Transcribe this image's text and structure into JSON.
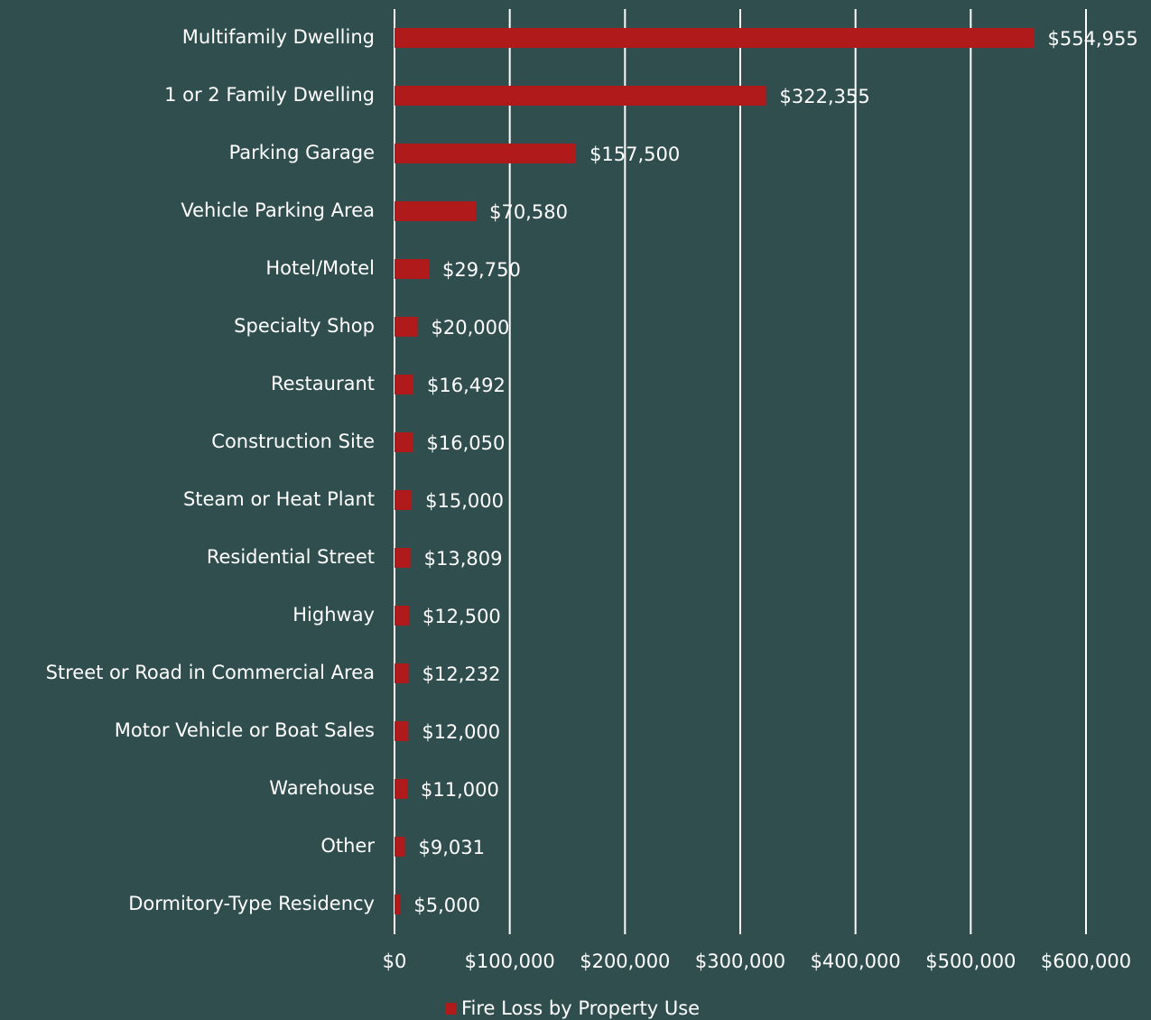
{
  "chart_data": {
    "type": "bar",
    "orientation": "horizontal",
    "categories": [
      "Multifamily Dwelling",
      "1 or 2 Family Dwelling",
      "Parking Garage",
      "Vehicle Parking Area",
      "Hotel/Motel",
      "Specialty Shop",
      "Restaurant",
      "Construction Site",
      "Steam or Heat Plant",
      "Residential Street",
      "Highway",
      "Street or Road in Commercial Area",
      "Motor Vehicle or Boat Sales",
      "Warehouse",
      "Other",
      "Dormitory-Type Residency"
    ],
    "series": [
      {
        "name": "Fire Loss by Property Use",
        "color": "#b01a1a",
        "values": [
          554955,
          322355,
          157500,
          70580,
          29750,
          20000,
          16492,
          16050,
          15000,
          13809,
          12500,
          12232,
          12000,
          11000,
          9031,
          5000
        ],
        "value_labels": [
          "$554,955",
          "$322,355",
          "$157,500",
          "$70,580",
          "$29,750",
          "$20,000",
          "$16,492",
          "$16,050",
          "$15,000",
          "$13,809",
          "$12,500",
          "$12,232",
          "$12,000",
          "$11,000",
          "$9,031",
          "$5,000"
        ]
      }
    ],
    "xlim": [
      0,
      600000
    ],
    "xticks": [
      {
        "value": 0,
        "label": "$0"
      },
      {
        "value": 100000,
        "label": "$100,000"
      },
      {
        "value": 200000,
        "label": "$200,000"
      },
      {
        "value": 300000,
        "label": "$300,000"
      },
      {
        "value": 400000,
        "label": "$400,000"
      },
      {
        "value": 500000,
        "label": "$500,000"
      },
      {
        "value": 600000,
        "label": "$600,000"
      }
    ],
    "grid": true,
    "legend": "bottom"
  }
}
